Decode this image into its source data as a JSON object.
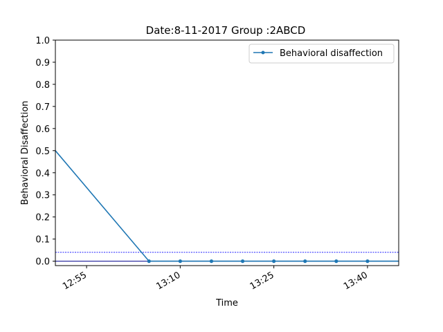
{
  "chart_data": {
    "type": "line",
    "title": "Date:8-11-2017 Group :2ABCD",
    "xlabel": "Time",
    "ylabel": "Behavioral Disaffection",
    "x": [
      "12:50",
      "13:05",
      "13:10",
      "13:15",
      "13:20",
      "13:25",
      "13:30",
      "13:35",
      "13:40",
      "13:45"
    ],
    "series": [
      {
        "name": "Behavioral disaffection",
        "color": "#1f77b4",
        "values": [
          0.5,
          0.0,
          0.0,
          0.0,
          0.0,
          0.0,
          0.0,
          0.0,
          0.0,
          0.0
        ]
      }
    ],
    "reference_lines": [
      {
        "y": 0.04,
        "color": "#0000ff",
        "style": "dotted"
      },
      {
        "y": 0.0,
        "color": "#00008b",
        "style": "solid"
      }
    ],
    "xlim": [
      "12:50",
      "13:45"
    ],
    "ylim": [
      -0.02,
      1.0
    ],
    "xticks": [
      "12:55",
      "13:10",
      "13:25",
      "13:40"
    ],
    "yticks": [
      "0.0",
      "0.1",
      "0.2",
      "0.3",
      "0.4",
      "0.5",
      "0.6",
      "0.7",
      "0.8",
      "0.9",
      "1.0"
    ],
    "legend_position": "top-right",
    "grid": false
  }
}
